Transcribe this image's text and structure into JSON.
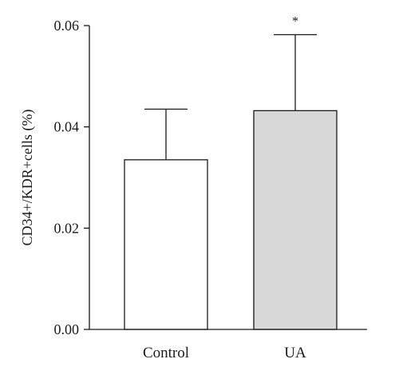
{
  "chart_data": {
    "type": "bar",
    "categories": [
      "Control",
      "UA"
    ],
    "values": [
      0.0335,
      0.0432
    ],
    "error_upper": [
      0.0435,
      0.0582
    ],
    "bar_colors": [
      "#ffffff",
      "#d8d8d8"
    ],
    "title": "",
    "xlabel": "",
    "ylabel": "CD34+/KDR+cells (%)",
    "ylim": [
      0,
      0.06
    ],
    "yticks": [
      "0.00",
      "0.02",
      "0.04",
      "0.06"
    ],
    "grid": false,
    "annotations": [
      {
        "category": "UA",
        "text": "*"
      }
    ]
  }
}
